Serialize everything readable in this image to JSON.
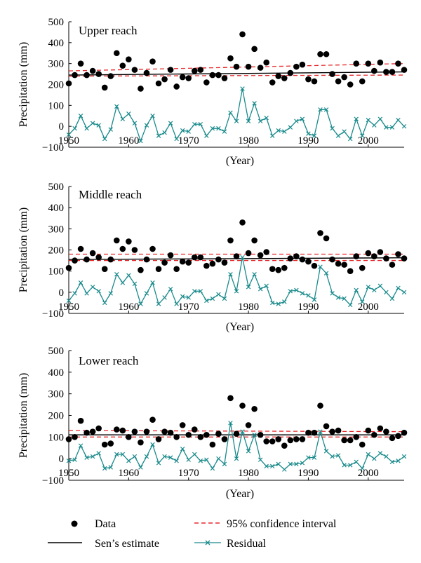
{
  "chart_data": [
    {
      "type": "scatter",
      "title": "Upper reach",
      "xlabel": "(Year)",
      "ylabel": "Precipitation (mm)",
      "xlim": [
        1950,
        2006
      ],
      "ylim": [
        -100,
        500
      ],
      "xticks": [
        "1950",
        "1960",
        "1970",
        "1980",
        "1990",
        "2000"
      ],
      "yticks": [
        "500",
        "400",
        "300",
        "200",
        "100",
        "0",
        "−100"
      ],
      "x": [
        1950,
        1951,
        1952,
        1953,
        1954,
        1955,
        1956,
        1957,
        1958,
        1959,
        1960,
        1961,
        1962,
        1963,
        1964,
        1965,
        1966,
        1967,
        1968,
        1969,
        1970,
        1971,
        1972,
        1973,
        1974,
        1975,
        1976,
        1977,
        1978,
        1979,
        1980,
        1981,
        1982,
        1983,
        1984,
        1985,
        1986,
        1987,
        1988,
        1989,
        1990,
        1991,
        1992,
        1993,
        1994,
        1995,
        1996,
        1997,
        1998,
        1999,
        2000,
        2001,
        2002,
        2003,
        2004,
        2005,
        2006
      ],
      "series": [
        {
          "name": "Data",
          "values": [
            205,
            245,
            300,
            245,
            265,
            250,
            185,
            240,
            350,
            290,
            320,
            270,
            180,
            255,
            310,
            205,
            225,
            270,
            190,
            235,
            230,
            265,
            270,
            210,
            245,
            245,
            230,
            325,
            285,
            440,
            285,
            370,
            280,
            305,
            210,
            240,
            230,
            255,
            285,
            295,
            225,
            215,
            345,
            345,
            250,
            215,
            235,
            200,
            300,
            215,
            300,
            265,
            305,
            260,
            260,
            300,
            270
          ]
        },
        {
          "name": "Sen's estimate",
          "values": [
            245,
            260
          ]
        },
        {
          "name": "95% confidence interval",
          "upper": [
            265,
            300
          ],
          "lower": [
            240,
            245
          ]
        },
        {
          "name": "Residual",
          "values": [
            -40,
            -10,
            50,
            -10,
            15,
            5,
            -60,
            -15,
            95,
            35,
            60,
            15,
            -70,
            5,
            50,
            -45,
            -30,
            15,
            -60,
            -20,
            -25,
            10,
            10,
            -45,
            -10,
            -10,
            -25,
            65,
            25,
            180,
            25,
            110,
            25,
            40,
            -45,
            -20,
            -25,
            -5,
            25,
            35,
            -35,
            -45,
            80,
            80,
            -10,
            -45,
            -25,
            -60,
            35,
            -45,
            30,
            5,
            35,
            -5,
            -5,
            30,
            0
          ]
        }
      ]
    },
    {
      "type": "scatter",
      "title": "Middle reach",
      "xlabel": "(Year)",
      "ylabel": "Precipitation (mm)",
      "xlim": [
        1950,
        2006
      ],
      "ylim": [
        -100,
        500
      ],
      "xticks": [
        "1950",
        "1960",
        "1970",
        "1980",
        "1990",
        "2000"
      ],
      "yticks": [
        "500",
        "400",
        "300",
        "200",
        "100",
        "0",
        "−100"
      ],
      "x": [
        1950,
        1951,
        1952,
        1953,
        1954,
        1955,
        1956,
        1957,
        1958,
        1959,
        1960,
        1961,
        1962,
        1963,
        1964,
        1965,
        1966,
        1967,
        1968,
        1969,
        1970,
        1971,
        1972,
        1973,
        1974,
        1975,
        1976,
        1977,
        1978,
        1979,
        1980,
        1981,
        1982,
        1983,
        1984,
        1985,
        1986,
        1987,
        1988,
        1989,
        1990,
        1991,
        1992,
        1993,
        1994,
        1995,
        1996,
        1997,
        1998,
        1999,
        2000,
        2001,
        2002,
        2003,
        2004,
        2005,
        2006
      ],
      "series": [
        {
          "name": "Data",
          "values": [
            115,
            150,
            205,
            155,
            185,
            165,
            110,
            155,
            245,
            205,
            240,
            200,
            105,
            155,
            205,
            110,
            140,
            175,
            110,
            145,
            140,
            165,
            165,
            125,
            135,
            155,
            140,
            245,
            170,
            330,
            185,
            245,
            175,
            190,
            110,
            105,
            115,
            160,
            170,
            155,
            145,
            125,
            280,
            255,
            155,
            135,
            130,
            100,
            170,
            115,
            185,
            170,
            190,
            160,
            130,
            180,
            160
          ]
        },
        {
          "name": "Sen's estimate",
          "values": [
            155,
            163
          ]
        },
        {
          "name": "95% confidence interval",
          "upper": [
            180,
            180
          ],
          "lower": [
            150,
            150
          ]
        },
        {
          "name": "Residual",
          "values": [
            -40,
            -5,
            45,
            -5,
            25,
            5,
            -50,
            -5,
            85,
            45,
            80,
            40,
            -55,
            -5,
            45,
            -55,
            -25,
            15,
            -55,
            -20,
            -25,
            5,
            5,
            -40,
            -30,
            -10,
            -30,
            85,
            5,
            165,
            25,
            85,
            15,
            30,
            -50,
            -55,
            -45,
            5,
            10,
            -5,
            -15,
            -35,
            120,
            90,
            -5,
            -25,
            -30,
            -60,
            10,
            -45,
            25,
            10,
            30,
            0,
            -30,
            20,
            0
          ]
        }
      ]
    },
    {
      "type": "scatter",
      "title": "Lower reach",
      "xlabel": "(Year)",
      "ylabel": "Precipitation (mm)",
      "xlim": [
        1950,
        2006
      ],
      "ylim": [
        -100,
        500
      ],
      "xticks": [
        "1950",
        "1960",
        "1970",
        "1980",
        "1990",
        "2000"
      ],
      "yticks": [
        "500",
        "400",
        "300",
        "200",
        "100",
        "0",
        "−100"
      ],
      "x": [
        1950,
        1951,
        1952,
        1953,
        1954,
        1955,
        1956,
        1957,
        1958,
        1959,
        1960,
        1961,
        1962,
        1963,
        1964,
        1965,
        1966,
        1967,
        1968,
        1969,
        1970,
        1971,
        1972,
        1973,
        1974,
        1975,
        1976,
        1977,
        1978,
        1979,
        1980,
        1981,
        1982,
        1983,
        1984,
        1985,
        1986,
        1987,
        1988,
        1989,
        1990,
        1991,
        1992,
        1993,
        1994,
        1995,
        1996,
        1997,
        1998,
        1999,
        2000,
        2001,
        2002,
        2003,
        2004,
        2005,
        2006
      ],
      "series": [
        {
          "name": "Data",
          "values": [
            90,
            100,
            175,
            120,
            125,
            140,
            65,
            70,
            135,
            130,
            100,
            125,
            75,
            125,
            180,
            90,
            125,
            120,
            100,
            155,
            110,
            135,
            100,
            110,
            65,
            115,
            90,
            280,
            115,
            245,
            155,
            230,
            110,
            80,
            80,
            90,
            60,
            85,
            90,
            90,
            120,
            120,
            245,
            150,
            125,
            130,
            85,
            85,
            100,
            65,
            130,
            110,
            140,
            125,
            95,
            105,
            120
          ]
        },
        {
          "name": "Sen's estimate",
          "values": [
            110,
            110
          ]
        },
        {
          "name": "95% confidence interval",
          "upper": [
            130,
            125
          ],
          "lower": [
            100,
            100
          ]
        },
        {
          "name": "Residual",
          "values": [
            -10,
            -5,
            60,
            5,
            10,
            25,
            -45,
            -40,
            20,
            20,
            -10,
            10,
            -40,
            10,
            65,
            -20,
            10,
            5,
            -10,
            45,
            -5,
            20,
            -10,
            -5,
            -45,
            0,
            -25,
            165,
            0,
            125,
            35,
            110,
            -5,
            -35,
            -35,
            -25,
            -50,
            -25,
            -25,
            -20,
            5,
            5,
            125,
            35,
            10,
            15,
            -30,
            -30,
            -15,
            -45,
            20,
            0,
            25,
            10,
            -15,
            -10,
            10
          ]
        }
      ]
    }
  ],
  "legend": {
    "data": "Data",
    "sens": "Sen’s estimate",
    "ci": "95% confidence interval",
    "residual": "Residual"
  },
  "colors": {
    "data": "#000000",
    "sens": "#000000",
    "ci": "#e8282b",
    "residual": "#1a8a8c"
  }
}
